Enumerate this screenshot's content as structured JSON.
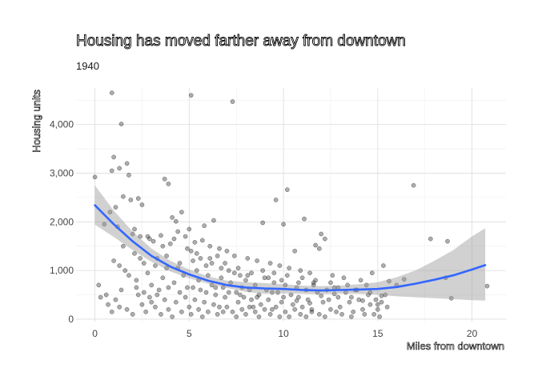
{
  "chart_data": {
    "type": "scatter",
    "title": "Housing has moved farther away from downtown",
    "subtitle": "1940",
    "xlabel": "Miles from downtown",
    "ylabel": "Housing units",
    "xlim": [
      -1,
      21.8
    ],
    "ylim": [
      -50,
      4750
    ],
    "x_ticks": [
      0,
      5,
      10,
      15,
      20
    ],
    "y_ticks": [
      0,
      1000,
      2000,
      3000,
      4000
    ],
    "x_tick_labels": [
      "0",
      "5",
      "10",
      "15",
      "20"
    ],
    "y_tick_labels": [
      "0",
      "1,000",
      "2,000",
      "3,000",
      "4,000"
    ],
    "grid": true,
    "legend": "none",
    "colors": {
      "points": "#000000",
      "smooth": "#3366ff",
      "band": "#999999"
    },
    "smooth": {
      "method": "loess",
      "x": [
        0,
        1,
        2,
        3,
        4,
        5,
        6,
        7,
        8,
        9,
        10,
        11,
        12,
        13,
        14,
        15,
        16,
        17,
        18,
        19,
        20,
        20.7
      ],
      "y": [
        2340,
        1950,
        1600,
        1300,
        1080,
        920,
        790,
        700,
        650,
        630,
        620,
        600,
        590,
        600,
        610,
        620,
        660,
        730,
        810,
        900,
        1020,
        1110
      ],
      "lower": [
        1940,
        1690,
        1420,
        1180,
        980,
        840,
        730,
        640,
        560,
        520,
        530,
        520,
        510,
        520,
        520,
        500,
        470,
        450,
        430,
        410,
        390,
        380
      ],
      "upper": [
        2750,
        2230,
        1800,
        1450,
        1200,
        1020,
        880,
        790,
        760,
        740,
        720,
        690,
        680,
        690,
        720,
        760,
        860,
        1000,
        1200,
        1420,
        1700,
        1870
      ]
    },
    "points": [
      [
        0.9,
        4650
      ],
      [
        5.1,
        4600
      ],
      [
        7.3,
        4470
      ],
      [
        1.4,
        4010
      ],
      [
        0.0,
        2920
      ],
      [
        1.0,
        3330
      ],
      [
        0.9,
        3050
      ],
      [
        1.7,
        3200
      ],
      [
        1.3,
        3100
      ],
      [
        1.8,
        2960
      ],
      [
        0.8,
        2200
      ],
      [
        1.1,
        2300
      ],
      [
        1.5,
        2520
      ],
      [
        1.9,
        2450
      ],
      [
        2.3,
        2480
      ],
      [
        2.5,
        2350
      ],
      [
        3.7,
        2880
      ],
      [
        3.9,
        2780
      ],
      [
        4.6,
        2200
      ],
      [
        4.1,
        2090
      ],
      [
        4.3,
        2010
      ],
      [
        5.0,
        1850
      ],
      [
        5.8,
        1920
      ],
      [
        6.3,
        2030
      ],
      [
        10.2,
        2660
      ],
      [
        9.6,
        2450
      ],
      [
        11.1,
        2060
      ],
      [
        10.0,
        1950
      ],
      [
        8.9,
        1980
      ],
      [
        16.9,
        2750
      ],
      [
        17.8,
        1650
      ],
      [
        18.7,
        1600
      ],
      [
        12.0,
        1750
      ],
      [
        12.2,
        1650
      ],
      [
        11.7,
        1520
      ],
      [
        10.6,
        1400
      ],
      [
        11.9,
        1450
      ],
      [
        0.5,
        1950
      ],
      [
        1.2,
        1900
      ],
      [
        2.0,
        1750
      ],
      [
        2.4,
        1700
      ],
      [
        2.9,
        1650
      ],
      [
        3.1,
        1600
      ],
      [
        3.5,
        1720
      ],
      [
        4.0,
        1550
      ],
      [
        4.4,
        1800
      ],
      [
        4.8,
        1700
      ],
      [
        5.3,
        1580
      ],
      [
        5.7,
        1620
      ],
      [
        6.1,
        1500
      ],
      [
        6.6,
        1450
      ],
      [
        7.0,
        1400
      ],
      [
        7.4,
        1300
      ],
      [
        8.1,
        1250
      ],
      [
        8.6,
        1200
      ],
      [
        9.3,
        1150
      ],
      [
        9.8,
        1100
      ],
      [
        10.3,
        1050
      ],
      [
        10.9,
        1000
      ],
      [
        11.4,
        950
      ],
      [
        12.6,
        900
      ],
      [
        13.2,
        850
      ],
      [
        14.1,
        800
      ],
      [
        14.7,
        950
      ],
      [
        15.3,
        1100
      ],
      [
        15.6,
        780
      ],
      [
        16.4,
        820
      ],
      [
        1.0,
        1200
      ],
      [
        1.3,
        1100
      ],
      [
        1.6,
        1000
      ],
      [
        1.8,
        900
      ],
      [
        2.1,
        1350
      ],
      [
        2.2,
        800
      ],
      [
        2.6,
        1150
      ],
      [
        2.8,
        950
      ],
      [
        3.0,
        700
      ],
      [
        3.3,
        1250
      ],
      [
        3.4,
        600
      ],
      [
        3.6,
        850
      ],
      [
        3.8,
        1050
      ],
      [
        4.2,
        750
      ],
      [
        4.5,
        1150
      ],
      [
        4.7,
        900
      ],
      [
        4.9,
        650
      ],
      [
        5.2,
        1200
      ],
      [
        5.4,
        1000
      ],
      [
        5.5,
        800
      ],
      [
        5.6,
        600
      ],
      [
        5.9,
        1100
      ],
      [
        6.0,
        900
      ],
      [
        6.2,
        700
      ],
      [
        6.4,
        500
      ],
      [
        6.5,
        1300
      ],
      [
        6.7,
        850
      ],
      [
        6.8,
        650
      ],
      [
        6.9,
        450
      ],
      [
        7.1,
        1000
      ],
      [
        7.2,
        750
      ],
      [
        7.5,
        550
      ],
      [
        7.6,
        350
      ],
      [
        7.7,
        900
      ],
      [
        7.8,
        650
      ],
      [
        7.9,
        450
      ],
      [
        8.0,
        800
      ],
      [
        8.2,
        600
      ],
      [
        8.3,
        400
      ],
      [
        8.4,
        250
      ],
      [
        8.5,
        700
      ],
      [
        8.7,
        500
      ],
      [
        8.8,
        300
      ],
      [
        9.0,
        850
      ],
      [
        9.1,
        600
      ],
      [
        9.2,
        400
      ],
      [
        9.4,
        200
      ],
      [
        9.5,
        750
      ],
      [
        9.7,
        550
      ],
      [
        9.9,
        350
      ],
      [
        10.1,
        700
      ],
      [
        10.4,
        500
      ],
      [
        10.5,
        300
      ],
      [
        10.7,
        650
      ],
      [
        10.8,
        450
      ],
      [
        11.0,
        250
      ],
      [
        11.2,
        600
      ],
      [
        11.3,
        400
      ],
      [
        11.5,
        200
      ],
      [
        11.6,
        750
      ],
      [
        11.8,
        550
      ],
      [
        12.1,
        350
      ],
      [
        12.3,
        600
      ],
      [
        12.4,
        400
      ],
      [
        12.5,
        200
      ],
      [
        12.7,
        650
      ],
      [
        12.9,
        450
      ],
      [
        13.0,
        250
      ],
      [
        13.3,
        550
      ],
      [
        13.5,
        350
      ],
      [
        13.7,
        150
      ],
      [
        13.9,
        600
      ],
      [
        14.0,
        400
      ],
      [
        14.2,
        200
      ],
      [
        14.4,
        700
      ],
      [
        14.5,
        500
      ],
      [
        14.6,
        300
      ],
      [
        14.8,
        100
      ],
      [
        14.9,
        400
      ],
      [
        15.0,
        200
      ],
      [
        15.1,
        50
      ],
      [
        15.2,
        350
      ],
      [
        15.4,
        500
      ],
      [
        15.5,
        250
      ],
      [
        0.2,
        700
      ],
      [
        0.6,
        500
      ],
      [
        0.7,
        300
      ],
      [
        1.1,
        400
      ],
      [
        1.4,
        600
      ],
      [
        1.7,
        200
      ],
      [
        2.0,
        100
      ],
      [
        2.3,
        500
      ],
      [
        2.5,
        300
      ],
      [
        2.7,
        150
      ],
      [
        2.9,
        450
      ],
      [
        3.2,
        250
      ],
      [
        3.5,
        100
      ],
      [
        3.7,
        400
      ],
      [
        3.9,
        200
      ],
      [
        4.1,
        50
      ],
      [
        4.3,
        350
      ],
      [
        4.6,
        150
      ],
      [
        4.8,
        450
      ],
      [
        5.0,
        250
      ],
      [
        5.1,
        100
      ],
      [
        5.3,
        400
      ],
      [
        5.5,
        200
      ],
      [
        5.7,
        50
      ],
      [
        5.8,
        350
      ],
      [
        6.0,
        150
      ],
      [
        6.3,
        300
      ],
      [
        6.5,
        100
      ],
      [
        6.6,
        250
      ],
      [
        6.8,
        150
      ],
      [
        7.0,
        250
      ],
      [
        7.3,
        150
      ],
      [
        7.5,
        50
      ],
      [
        7.8,
        200
      ],
      [
        8.0,
        100
      ],
      [
        8.2,
        250
      ],
      [
        8.5,
        150
      ],
      [
        8.7,
        50
      ],
      [
        9.0,
        200
      ],
      [
        9.3,
        100
      ],
      [
        9.6,
        250
      ],
      [
        9.8,
        50
      ],
      [
        10.1,
        150
      ],
      [
        10.3,
        50
      ],
      [
        10.6,
        200
      ],
      [
        10.9,
        100
      ],
      [
        11.2,
        50
      ],
      [
        11.5,
        150
      ],
      [
        11.9,
        100
      ],
      [
        12.2,
        50
      ],
      [
        12.8,
        150
      ],
      [
        13.1,
        100
      ],
      [
        13.6,
        50
      ],
      [
        14.3,
        100
      ],
      [
        1.5,
        1500
      ],
      [
        2.4,
        1250
      ],
      [
        3.2,
        1100
      ],
      [
        3.8,
        1300
      ],
      [
        4.4,
        1050
      ],
      [
        5.1,
        1400
      ],
      [
        5.6,
        1250
      ],
      [
        6.2,
        1150
      ],
      [
        6.7,
        1050
      ],
      [
        7.4,
        950
      ],
      [
        8.1,
        900
      ],
      [
        8.9,
        1000
      ],
      [
        9.5,
        950
      ],
      [
        10.2,
        900
      ],
      [
        11.0,
        850
      ],
      [
        11.7,
        800
      ],
      [
        12.5,
        750
      ],
      [
        13.4,
        700
      ],
      [
        2.1,
        1850
      ],
      [
        2.8,
        1700
      ],
      [
        3.6,
        1500
      ],
      [
        4.2,
        1650
      ],
      [
        4.9,
        1450
      ],
      [
        5.4,
        1350
      ],
      [
        6.1,
        1250
      ],
      [
        6.9,
        1150
      ],
      [
        7.6,
        1050
      ],
      [
        8.3,
        950
      ],
      [
        9.2,
        850
      ],
      [
        9.9,
        800
      ],
      [
        10.8,
        750
      ],
      [
        11.6,
        700
      ],
      [
        12.9,
        650
      ],
      [
        13.8,
        600
      ],
      [
        14.6,
        550
      ],
      [
        15.2,
        480
      ],
      [
        16.0,
        700
      ],
      [
        18.6,
        850
      ],
      [
        18.9,
        430
      ],
      [
        20.8,
        680
      ],
      [
        0.3,
        450
      ],
      [
        0.9,
        150
      ],
      [
        1.3,
        250
      ],
      [
        2.2,
        650
      ],
      [
        2.6,
        550
      ],
      [
        3.0,
        350
      ],
      [
        3.3,
        500
      ],
      [
        3.9,
        650
      ],
      [
        4.5,
        550
      ],
      [
        5.2,
        650
      ],
      [
        5.9,
        550
      ],
      [
        6.4,
        650
      ],
      [
        7.1,
        550
      ],
      [
        7.7,
        500
      ],
      [
        8.6,
        450
      ],
      [
        9.4,
        550
      ],
      [
        10.0,
        450
      ],
      [
        10.7,
        380
      ],
      [
        11.4,
        330
      ],
      [
        12.0,
        480
      ],
      [
        12.7,
        520
      ],
      [
        13.6,
        450
      ],
      [
        14.2,
        380
      ],
      [
        15.0,
        300
      ]
    ]
  }
}
